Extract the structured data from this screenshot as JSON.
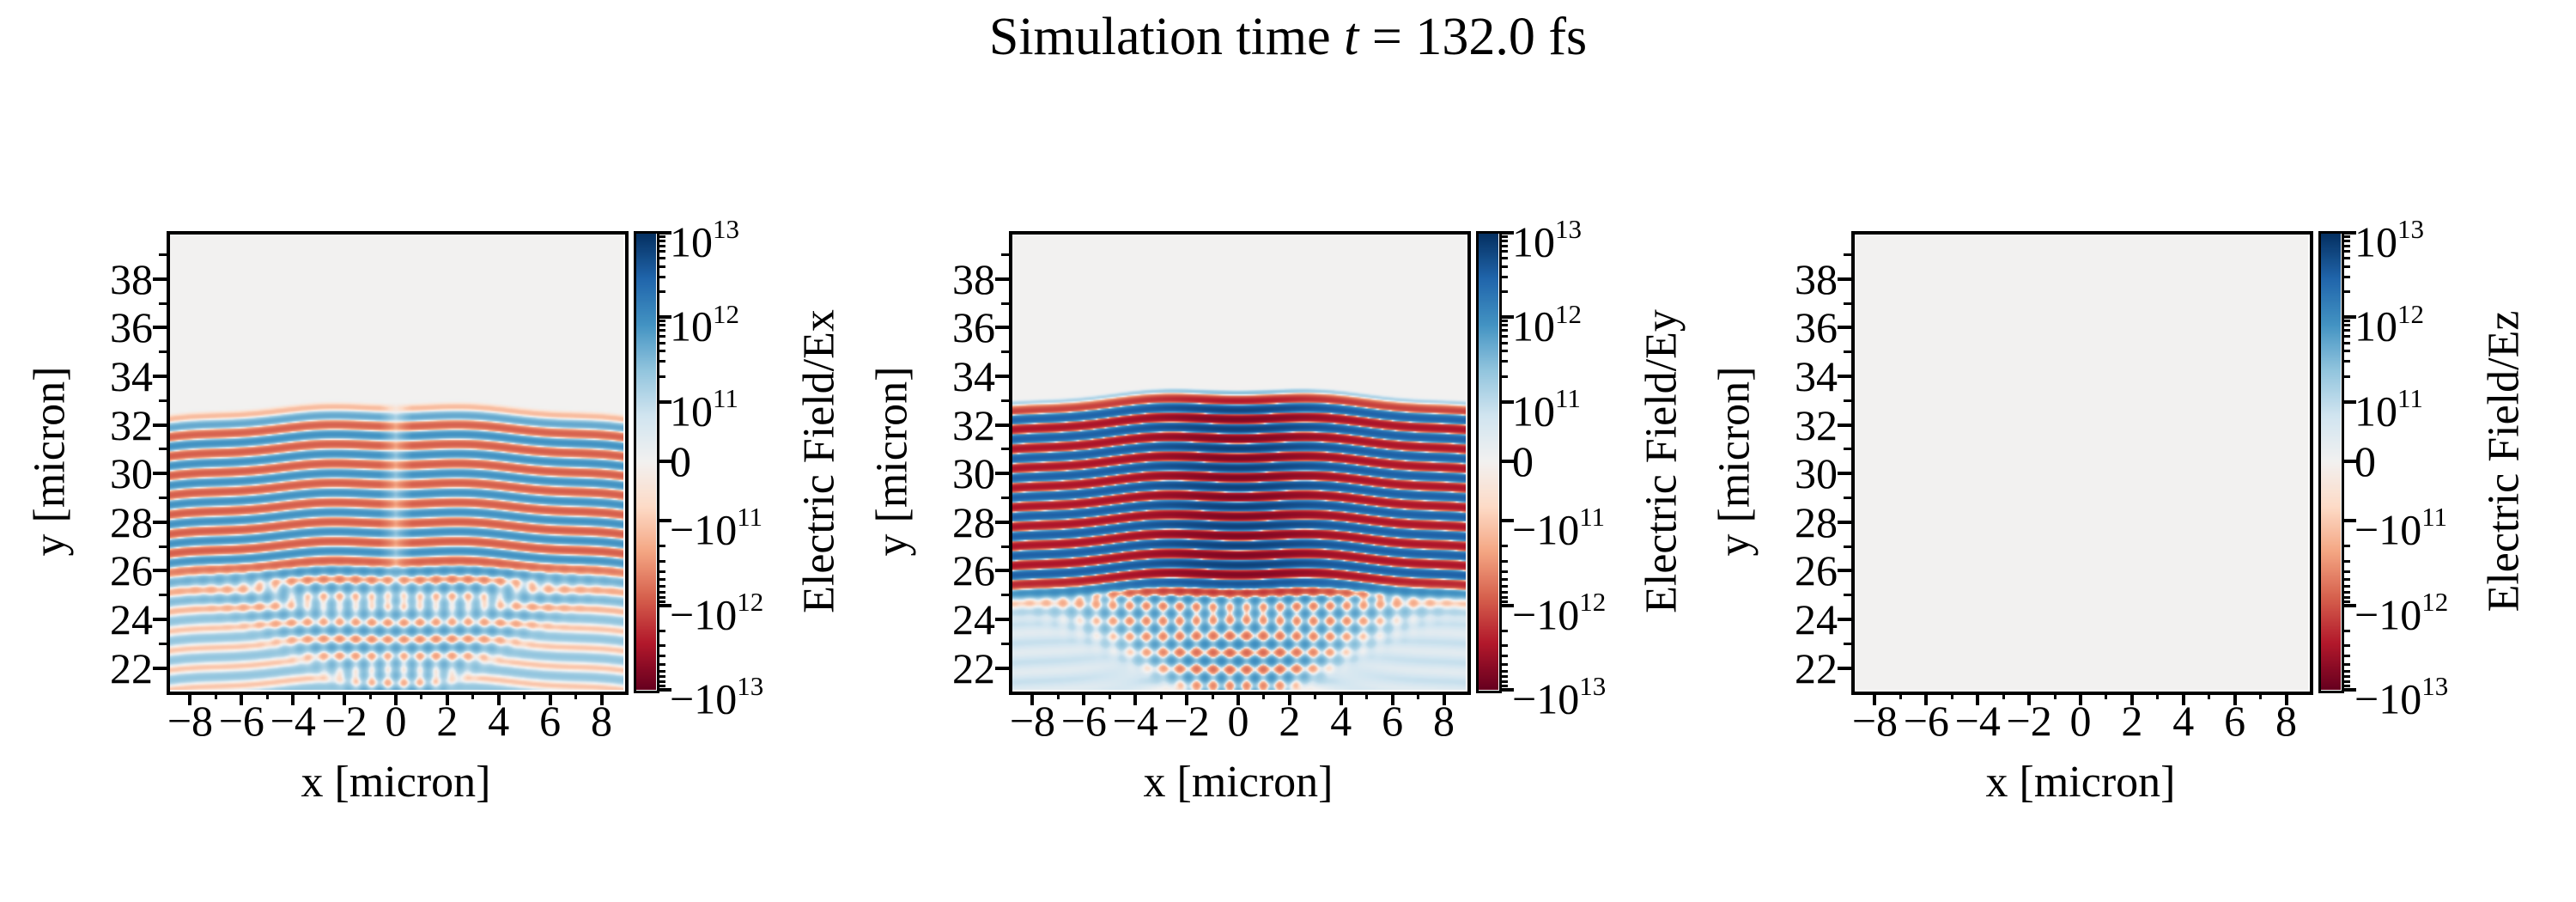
{
  "title": {
    "parts": {
      "prefix": "Simulation time ",
      "variable": "t",
      "suffix": " = 132.0 fs"
    }
  },
  "panels": [
    {
      "name": "Ex",
      "xlabel": "x [micron]",
      "ylabel": "y [micron]",
      "colorbar_label": "Electric Field/Ex"
    },
    {
      "name": "Ey",
      "xlabel": "x [micron]",
      "ylabel": "y [micron]",
      "colorbar_label": "Electric Field/Ey"
    },
    {
      "name": "Ez",
      "xlabel": "x [micron]",
      "ylabel": "y [micron]",
      "colorbar_label": "Electric Field/Ez"
    }
  ],
  "colorbar": {
    "tick_fracs_from_top": [
      0,
      0.185,
      0.37,
      0.5,
      0.63,
      0.815,
      1
    ],
    "tick_labels": [
      {
        "m": "10",
        "e": "13"
      },
      {
        "m": "10",
        "e": "12"
      },
      {
        "m": "10",
        "e": "11"
      },
      {
        "m": "0"
      },
      {
        "m": "−10",
        "e": "11"
      },
      {
        "m": "−10",
        "e": "12"
      },
      {
        "m": "−10",
        "e": "13"
      }
    ],
    "colormap_name": "RdBu",
    "colormap_stops": [
      "#67001f",
      "#b2182b",
      "#d6604d",
      "#f4a582",
      "#fddbc7",
      "#f2f1f0",
      "#d1e5f0",
      "#92c5de",
      "#4393c3",
      "#2166ac",
      "#053061"
    ]
  },
  "chart_data": [
    {
      "name": "Ex",
      "type": "heatmap",
      "title": "Electric Field/Ex",
      "xlabel": "x [micron]",
      "ylabel": "y [micron]",
      "xlim": [
        -8.85,
        8.85
      ],
      "ylim": [
        21.1,
        39.9
      ],
      "x_ticks": [
        -8,
        -6,
        -4,
        -2,
        0,
        2,
        4,
        6,
        8
      ],
      "x_tick_labels": [
        "−8",
        "−6",
        "−4",
        "−2",
        "0",
        "2",
        "4",
        "6",
        "8"
      ],
      "x_minor_ticks": [
        -7,
        -5,
        -3,
        -1,
        1,
        3,
        5,
        7
      ],
      "y_ticks": [
        22,
        24,
        26,
        28,
        30,
        32,
        34,
        36,
        38
      ],
      "y_tick_labels": [
        "22",
        "24",
        "26",
        "28",
        "30",
        "32",
        "34",
        "36",
        "38"
      ],
      "y_minor_ticks": [
        23,
        25,
        27,
        29,
        31,
        33,
        35,
        37,
        39
      ],
      "colormap": "RdBu",
      "norm": "symlog",
      "linthresh": 100000000000.0,
      "vmin": -10000000000000.0,
      "vmax": 10000000000000.0,
      "colorbar_ticks": [
        10000000000000.0,
        1000000000000.0,
        100000000000.0,
        0,
        -100000000000.0,
        -1000000000000.0,
        -10000000000000.0
      ],
      "wavelength_micron": 0.8,
      "beam": {
        "amp": 850000000000.0,
        "sign": 1,
        "phase_top": 32.6,
        "env_top_start": 33.1,
        "env_top_full": 31.8,
        "env_bot_full": 26.5,
        "env_bot_end": 23.8,
        "floor": 0.3,
        "radius_curv": 70,
        "null_width": 0.65,
        "null_floor": 0.3,
        "boost": 0,
        "boost_sigma": 3,
        "waviness": 0.06,
        "waviness_freq": 1.1
      },
      "scatter": {
        "start": 26.7,
        "full": 25.3,
        "apex": 21.0,
        "period": 1.25,
        "wash": 130000000000.0,
        "diag": 320000000000.0,
        "hstripe": 120000000000.0,
        "cone": 1.15
      },
      "description": "Transverse field Ex of a laser pulse propagating in -y: curved horizontal wavefront stripes (lambda ~0.8 micron, peak ~1e12) between y~26.5 and y~32.8 with a null seam at x=0, uniform near-zero above y~33, and a weak (~2-3e11) V-shaped diagonal interference region with light-blue wash below y~26."
    },
    {
      "name": "Ey",
      "type": "heatmap",
      "title": "Electric Field/Ey",
      "xlabel": "x [micron]",
      "ylabel": "y [micron]",
      "xlim": [
        -8.85,
        8.85
      ],
      "ylim": [
        21.1,
        39.9
      ],
      "x_ticks": [
        -8,
        -6,
        -4,
        -2,
        0,
        2,
        4,
        6,
        8
      ],
      "x_tick_labels": [
        "−8",
        "−6",
        "−4",
        "−2",
        "0",
        "2",
        "4",
        "6",
        "8"
      ],
      "x_minor_ticks": [
        -7,
        -5,
        -3,
        -1,
        1,
        3,
        5,
        7
      ],
      "y_ticks": [
        22,
        24,
        26,
        28,
        30,
        32,
        34,
        36,
        38
      ],
      "y_tick_labels": [
        "22",
        "24",
        "26",
        "28",
        "30",
        "32",
        "34",
        "36",
        "38"
      ],
      "y_minor_ticks": [
        23,
        25,
        27,
        29,
        31,
        33,
        35,
        37,
        39
      ],
      "colormap": "RdBu",
      "norm": "symlog",
      "linthresh": 100000000000.0,
      "vmin": -10000000000000.0,
      "vmax": 10000000000000.0,
      "colorbar_ticks": [
        10000000000000.0,
        1000000000000.0,
        100000000000.0,
        0,
        -100000000000.0,
        -1000000000000.0,
        -10000000000000.0
      ],
      "wavelength_micron": 0.8,
      "beam": {
        "amp": 3200000000000.0,
        "sign": -1,
        "phase_top": 33.3,
        "env_top_start": 33.55,
        "env_top_full": 32.5,
        "env_bot_full": 26.2,
        "env_bot_end": 24.2,
        "floor": 0.35,
        "radius_curv": 70,
        "null_width": 0,
        "null_floor": 1,
        "boost": 1.1,
        "boost_sigma": 3.0,
        "waviness": 0.07,
        "waviness_freq": 1.0
      },
      "scatter": {
        "start": 25.9,
        "full": 24.7,
        "apex": 21.0,
        "period": 1.3,
        "wash": 140000000000.0,
        "diag": 650000000000.0,
        "hstripe": 250000000000.0,
        "cone": 1.3
      },
      "description": "Main polarization component Ey: saturated alternating dark-blue/dark-red wavefront stripes (lambda ~0.8 micron, up to ~1e13 on axis) between y~25.8 and y~33.3, strongest near x=0, uniform near-zero above y~33.5, stronger diagonal V-shaped interference (~6-7e11) below y~25.8."
    },
    {
      "name": "Ez",
      "type": "heatmap",
      "title": "Electric Field/Ez",
      "xlabel": "x [micron]",
      "ylabel": "y [micron]",
      "xlim": [
        -8.85,
        8.85
      ],
      "ylim": [
        21.1,
        39.9
      ],
      "x_ticks": [
        -8,
        -6,
        -4,
        -2,
        0,
        2,
        4,
        6,
        8
      ],
      "x_tick_labels": [
        "−8",
        "−6",
        "−4",
        "−2",
        "0",
        "2",
        "4",
        "6",
        "8"
      ],
      "x_minor_ticks": [
        -7,
        -5,
        -3,
        -1,
        1,
        3,
        5,
        7
      ],
      "y_ticks": [
        22,
        24,
        26,
        28,
        30,
        32,
        34,
        36,
        38
      ],
      "y_tick_labels": [
        "22",
        "24",
        "26",
        "28",
        "30",
        "32",
        "34",
        "36",
        "38"
      ],
      "y_minor_ticks": [
        23,
        25,
        27,
        29,
        31,
        33,
        35,
        37,
        39
      ],
      "colormap": "RdBu",
      "norm": "symlog",
      "linthresh": 100000000000.0,
      "vmin": -10000000000000.0,
      "vmax": 10000000000000.0,
      "colorbar_ticks": [
        10000000000000.0,
        1000000000000.0,
        100000000000.0,
        0,
        -100000000000.0,
        -1000000000000.0,
        -10000000000000.0
      ],
      "wavelength_micron": 0.8,
      "beam": null,
      "scatter": null,
      "description": "Out-of-plane field Ez is zero everywhere: uniform near-white panel."
    }
  ]
}
